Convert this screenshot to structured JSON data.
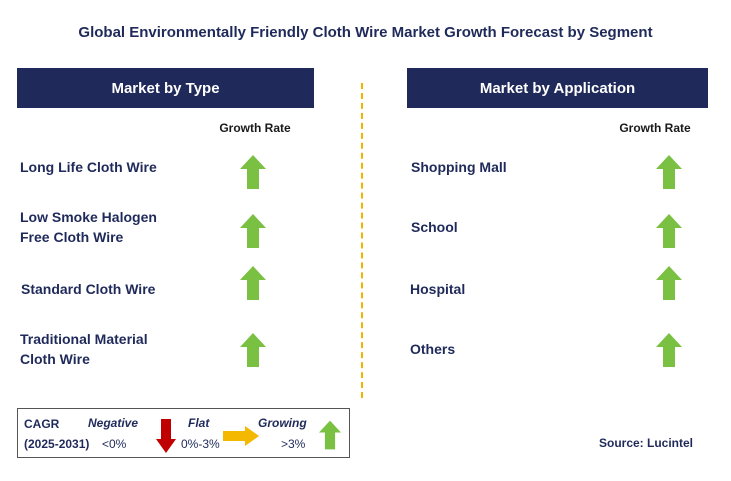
{
  "title": "Global Environmentally Friendly Cloth Wire Market Growth Forecast by Segment",
  "left_panel": {
    "header": "Market by Type",
    "column_header": "Growth Rate",
    "items": [
      {
        "line1": "Long Life Cloth Wire",
        "line2": "",
        "trend": "growing"
      },
      {
        "line1": "Low Smoke Halogen",
        "line2": "Free Cloth Wire",
        "trend": "growing"
      },
      {
        "line1": "Standard Cloth Wire",
        "line2": "",
        "trend": "growing"
      },
      {
        "line1": "Traditional Material",
        "line2": "Cloth Wire",
        "trend": "growing"
      }
    ]
  },
  "right_panel": {
    "header": "Market by Application",
    "column_header": "Growth Rate",
    "items": [
      {
        "line1": "Shopping Mall",
        "trend": "growing"
      },
      {
        "line1": "School",
        "trend": "growing"
      },
      {
        "line1": "Hospital",
        "trend": "growing"
      },
      {
        "line1": "Others",
        "trend": "growing"
      }
    ]
  },
  "legend": {
    "cagr_label": "CAGR",
    "period": "(2025-2031)",
    "negative_label": "Negative",
    "negative_range": "<0%",
    "flat_label": "Flat",
    "flat_range": "0%-3%",
    "growing_label": "Growing",
    "growing_range": ">3%"
  },
  "source": "Source: Lucintel",
  "colors": {
    "navy": "#1f2a5a",
    "growing": "#7ac143",
    "flat": "#f5b800",
    "negative": "#c00000",
    "divider": "#f0b400"
  }
}
